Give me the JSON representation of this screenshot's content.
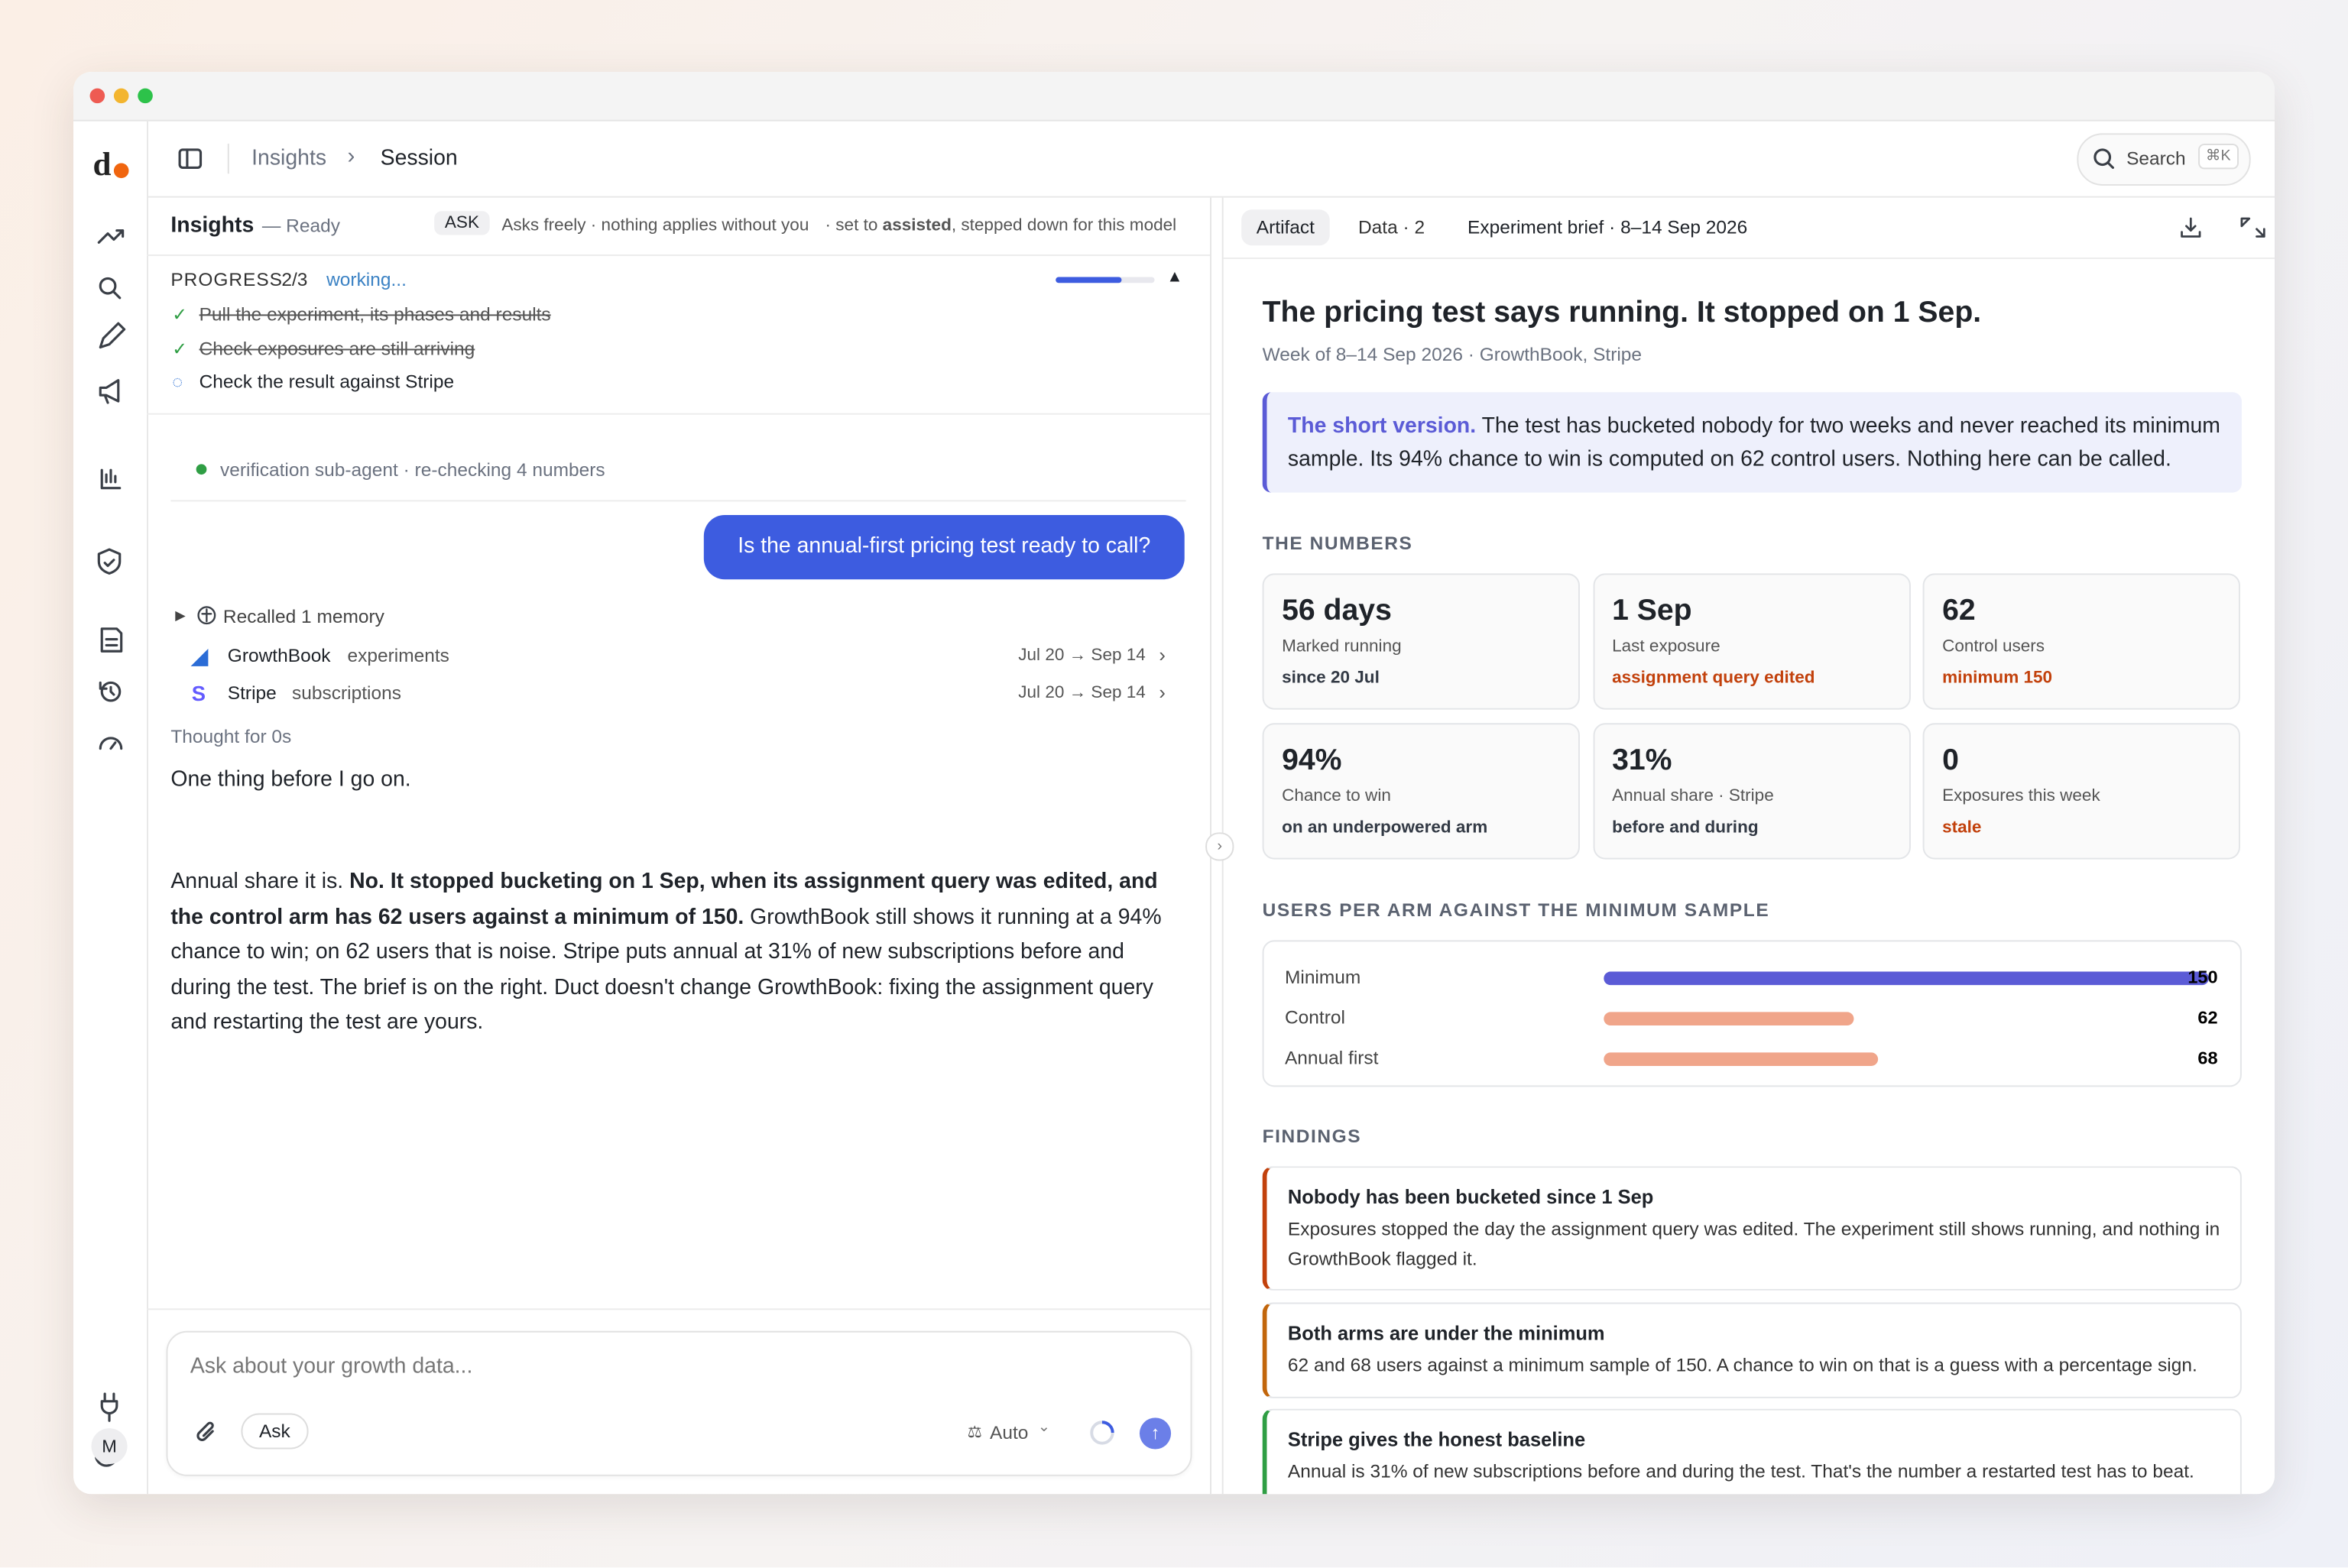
{
  "breadcrumb": [
    "Insights",
    "Session"
  ],
  "search": {
    "label": "Search",
    "shortcut": "⌘K"
  },
  "user_initial": "M",
  "chat": {
    "title": "Insights",
    "status": "— Ready",
    "mode_badge": "ASK",
    "mode_text": "Asks freely · nothing applies without you",
    "mode_note": [
      {
        "text": "· set to "
      },
      {
        "text": "assisted",
        "bold": true
      },
      {
        "text": ", stepped down for this model"
      }
    ],
    "progress": {
      "label": "PROGRESS",
      "count": "2/3",
      "state": "working...",
      "steps": [
        {
          "text": "Pull the experiment, its phases and results",
          "done": true
        },
        {
          "text": "Check exposures are still arriving",
          "done": true
        },
        {
          "text": "Check the result against Stripe",
          "done": false
        }
      ]
    },
    "agent_note": "verification sub-agent · re-checking 4 numbers",
    "user_message": "Is the annual-first pricing test ready to call?",
    "memory": "Recalled 1 memory",
    "sources": [
      {
        "name": "GrowthBook",
        "kind": "experiments",
        "range": "Jul 20 → Sep 14"
      },
      {
        "name": "Stripe",
        "kind": "subscriptions",
        "range": "Jul 20 → Sep 14"
      }
    ],
    "thought": "Thought for 0s",
    "reply_intro": "One thing before I go on.",
    "reply": [
      {
        "text": "Annual share it is. "
      },
      {
        "text": "No. It stopped bucketing on 1 Sep, when its assignment query was edited, and the control arm has 62 users against a minimum of 150.",
        "bold": true
      },
      {
        "text": " GrowthBook still shows it running at a 94% chance to win; on 62 users that is noise. Stripe puts annual at 31% of new subscriptions before and during the test. The brief is on the right. Duct doesn't change GrowthBook: fixing the assignment query and restarting the test are yours."
      }
    ],
    "input_placeholder": "Ask about your growth data...",
    "input_mode": "Ask",
    "model": "Auto"
  },
  "artifact": {
    "tabs": [
      "Artifact",
      "Data · 2"
    ],
    "doc_name": "Experiment brief · 8–14 Sep 2026",
    "title": "The pricing test says running. It stopped on 1 Sep.",
    "subtitle": "Week of 8–14 Sep 2026 · GrowthBook, Stripe",
    "summary_lead": "The short version.",
    "summary": " The test has bucketed nobody for two weeks and never reached its minimum sample. Its 94% chance to win is computed on 62 control users. Nothing here can be called.",
    "numbers_heading": "THE NUMBERS",
    "cards": [
      {
        "value": "56 days",
        "label": "Marked running",
        "note": "since 20 Jul",
        "note_color": "#333a45"
      },
      {
        "value": "1 Sep",
        "label": "Last exposure",
        "note": "assignment query edited",
        "note_color": "#c2410c"
      },
      {
        "value": "62",
        "label": "Control users",
        "note": "minimum 150",
        "note_color": "#c2410c"
      },
      {
        "value": "94%",
        "label": "Chance to win",
        "note": "on an underpowered arm",
        "note_color": "#333a45"
      },
      {
        "value": "31%",
        "label": "Annual share · Stripe",
        "note": "before and during",
        "note_color": "#333a45"
      },
      {
        "value": "0",
        "label": "Exposures this week",
        "note": "stale",
        "note_color": "#c2410c"
      }
    ],
    "arm_chart": {
      "type": "bar",
      "title": "USERS PER ARM AGAINST THE MINIMUM SAMPLE",
      "categories": [
        "Minimum",
        "Control",
        "Annual first"
      ],
      "values": [
        150,
        62,
        68
      ],
      "colors": [
        "#5b5bd6",
        "#f0a58a",
        "#f0a58a"
      ]
    },
    "findings_heading": "FINDINGS",
    "findings": [
      {
        "title": "Nobody has been bucketed since 1 Sep",
        "body": "Exposures stopped the day the assignment query was edited. The experiment still shows running, and nothing in GrowthBook flagged it.",
        "color": "#c2410c"
      },
      {
        "title": "Both arms are under the minimum",
        "body": "62 and 68 users against a minimum sample of 150. A chance to win on that is a guess with a percentage sign.",
        "color": "#c2660c"
      },
      {
        "title": "Stripe gives the honest baseline",
        "body": "Annual is 31% of new subscriptions before and during the test. That's the number a restarted test has to beat.",
        "color": "#2f9e44"
      }
    ]
  }
}
